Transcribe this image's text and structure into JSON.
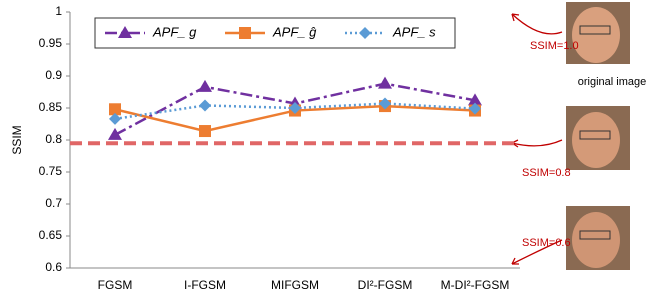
{
  "chart_data": {
    "type": "line",
    "y_label": "SSIM",
    "categories": [
      "FGSM",
      "I-FGSM",
      "MIFGSM",
      "DI²-FGSM",
      "M-DI²-FGSM"
    ],
    "series": [
      {
        "name": "APF_ g",
        "color": "#7030a0",
        "marker": "triangle",
        "dash": "12 4 3 4",
        "values": [
          0.808,
          0.883,
          0.857,
          0.888,
          0.862
        ]
      },
      {
        "name": "APF_ ĝ",
        "color": "#ed7d31",
        "marker": "square",
        "dash": "",
        "values": [
          0.848,
          0.814,
          0.846,
          0.853,
          0.846
        ]
      },
      {
        "name": "APF_ s",
        "color": "#5b9bd5",
        "marker": "diamond",
        "dash": "2 3",
        "values": [
          0.833,
          0.854,
          0.85,
          0.857,
          0.849
        ]
      }
    ],
    "ylim": [
      0.6,
      1
    ],
    "yticks": [
      0.6,
      0.65,
      0.7,
      0.75,
      0.8,
      0.85,
      0.9,
      0.95,
      1
    ],
    "reference_line": {
      "value": 0.795,
      "color": "#e06666"
    },
    "annotations": [
      "SSIM=1.0",
      "original image",
      "SSIM=0.8",
      "SSIM=0.6"
    ]
  }
}
